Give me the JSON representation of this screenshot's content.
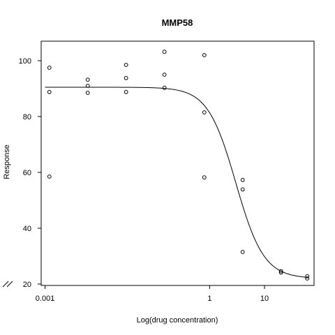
{
  "chart_data": {
    "type": "scatter",
    "title": "MMP58",
    "xlabel": "Log(drug concentration)",
    "ylabel": "Response",
    "x_scale": "log10",
    "xlim": [
      0.00085,
      80
    ],
    "ylim": [
      19.5,
      107
    ],
    "x_ticks": [
      {
        "value": 0.001,
        "label": "0.001"
      },
      {
        "value": 1,
        "label": "1"
      },
      {
        "value": 10,
        "label": "10"
      }
    ],
    "y_ticks": [
      {
        "value": 20,
        "label": "20"
      },
      {
        "value": 40,
        "label": "40"
      },
      {
        "value": 60,
        "label": "60"
      },
      {
        "value": 80,
        "label": "80"
      },
      {
        "value": 100,
        "label": "100"
      }
    ],
    "axis_break": "y-axis break marks near bottom-left",
    "grid": false,
    "legend": "none",
    "series": [
      {
        "kind": "points",
        "marker": "open-circle",
        "points": [
          {
            "x": 0.0012,
            "y": 97.5
          },
          {
            "x": 0.0012,
            "y": 88.8
          },
          {
            "x": 0.0012,
            "y": 58.5
          },
          {
            "x": 0.006,
            "y": 93.2
          },
          {
            "x": 0.006,
            "y": 91.0
          },
          {
            "x": 0.006,
            "y": 88.5
          },
          {
            "x": 0.03,
            "y": 98.5
          },
          {
            "x": 0.03,
            "y": 93.8
          },
          {
            "x": 0.03,
            "y": 88.8
          },
          {
            "x": 0.15,
            "y": 103.2
          },
          {
            "x": 0.15,
            "y": 95.0
          },
          {
            "x": 0.15,
            "y": 90.3
          },
          {
            "x": 0.8,
            "y": 102.0
          },
          {
            "x": 0.8,
            "y": 81.5
          },
          {
            "x": 0.8,
            "y": 58.2
          },
          {
            "x": 4.0,
            "y": 57.3
          },
          {
            "x": 4.0,
            "y": 53.9
          },
          {
            "x": 4.0,
            "y": 31.5
          },
          {
            "x": 20,
            "y": 24.6
          },
          {
            "x": 20,
            "y": 24.1
          },
          {
            "x": 60,
            "y": 22.8
          },
          {
            "x": 60,
            "y": 22.0
          }
        ]
      },
      {
        "kind": "fitted-curve",
        "model": "four-parameter logistic",
        "top": 90.5,
        "bottom": 22.0,
        "ec50": 3.0,
        "hill": 1.7,
        "x_range": [
          0.001,
          60
        ]
      }
    ]
  }
}
